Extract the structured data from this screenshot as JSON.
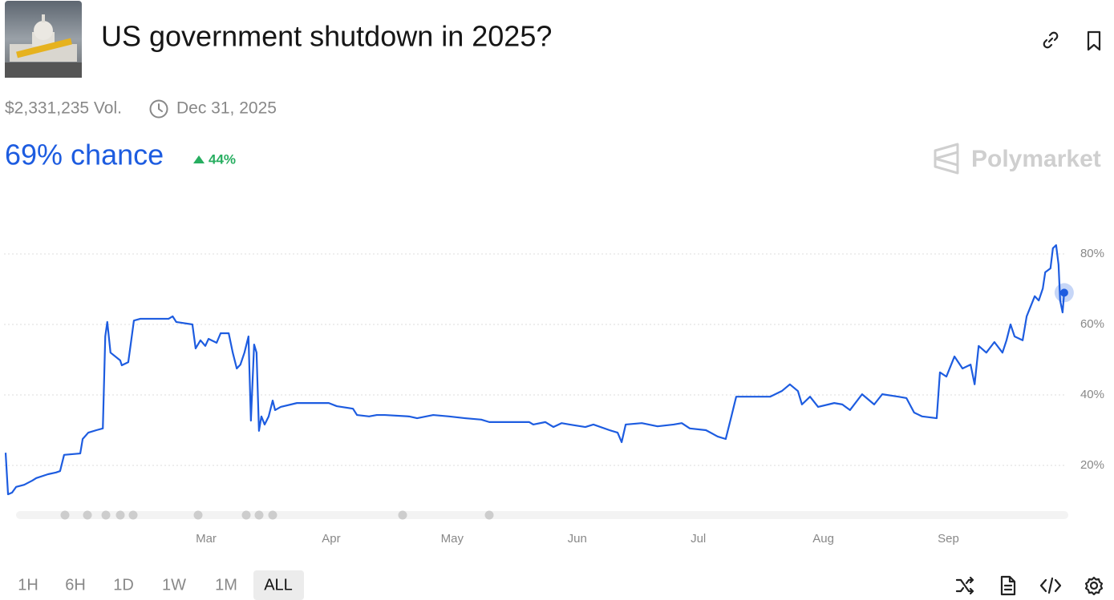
{
  "header": {
    "title": "US government shutdown in 2025?",
    "volume": "$2,331,235 Vol.",
    "end_date": "Dec 31, 2025",
    "chance": "69% chance",
    "change": "44%",
    "brand": "Polymarket"
  },
  "chart_data": {
    "type": "line",
    "color": "#1d5ce0",
    "x": [
      10.3,
      10.9,
      11.9,
      12.9,
      14.9,
      16.9,
      17.9,
      20.8,
      22.8,
      23.8,
      24.8,
      28.8,
      29.4,
      30.8,
      32.8,
      34.4,
      35.0,
      35.5,
      36.3,
      38.7,
      39.1,
      40.7,
      41.3,
      42.1,
      43.7,
      50.7,
      51.7,
      52.6,
      56.6,
      57.4,
      58.6,
      59.8,
      60.6,
      62.6,
      63.6,
      65.6,
      66.6,
      67.6,
      68.5,
      69.5,
      70.5,
      71.1,
      71.9,
      72.5,
      73.1,
      73.7,
      74.5,
      75.5,
      76.5,
      77.1,
      78.5,
      82.5,
      90.4,
      92.4,
      96.4,
      97.4,
      100.4,
      102.3,
      104.3,
      110.3,
      112.3,
      116.3,
      120.2,
      124.2,
      128.2,
      130.2,
      140.1,
      141.1,
      144.1,
      146.1,
      148.1,
      150.1,
      154.0,
      156.0,
      160.0,
      162.0,
      163.0,
      164.0,
      168.0,
      171.9,
      175.9,
      177.9,
      179.9,
      183.9,
      186.8,
      188.8,
      190.2,
      191.4,
      193.8,
      199.8,
      202.7,
      204.7,
      206.7,
      207.7,
      209.7,
      211.7,
      215.7,
      217.7,
      219.6,
      222.6,
      225.6,
      227.6,
      231.6,
      233.6,
      235.5,
      237.5,
      241.1,
      241.9,
      243.5,
      245.5,
      247.5,
      249.5,
      250.5,
      251.5,
      253.4,
      255.4,
      257.4,
      258.4,
      259.4,
      260.4,
      262.4,
      263.4,
      265.4,
      266.4,
      267.4,
      268.0,
      269.3,
      269.9,
      270.7,
      271.3,
      271.7,
      272.3,
      272.7
    ],
    "values": [
      23.6,
      11.8,
      12.3,
      13.9,
      14.5,
      15.7,
      16.4,
      17.5,
      18.0,
      18.4,
      23.0,
      23.4,
      27.5,
      29.3,
      30.0,
      30.5,
      56.6,
      60.7,
      52.0,
      49.8,
      48.4,
      49.3,
      54.3,
      61.1,
      61.6,
      61.6,
      62.3,
      60.7,
      60.0,
      53.2,
      55.5,
      53.9,
      55.9,
      54.8,
      57.5,
      57.5,
      52.0,
      47.5,
      48.6,
      52.0,
      56.6,
      32.7,
      54.3,
      52.0,
      29.8,
      33.9,
      31.6,
      33.9,
      38.4,
      35.7,
      36.6,
      37.7,
      37.7,
      36.8,
      36.1,
      34.3,
      33.9,
      34.3,
      34.3,
      33.9,
      33.4,
      34.3,
      33.9,
      33.4,
      33.0,
      32.3,
      32.3,
      31.6,
      32.3,
      30.9,
      32.0,
      31.6,
      30.9,
      31.6,
      30.0,
      29.3,
      26.6,
      31.6,
      32.0,
      31.1,
      31.6,
      32.0,
      30.5,
      30.0,
      28.2,
      27.5,
      33.9,
      39.5,
      39.5,
      39.5,
      41.1,
      43.0,
      41.1,
      37.3,
      39.5,
      36.6,
      37.7,
      37.3,
      35.7,
      40.2,
      37.3,
      40.2,
      39.5,
      39.1,
      35.0,
      33.9,
      33.4,
      46.4,
      45.2,
      50.9,
      47.5,
      48.6,
      43.0,
      53.9,
      52.0,
      55.0,
      52.0,
      55.5,
      60.0,
      56.6,
      55.5,
      62.3,
      68.0,
      66.8,
      70.2,
      74.8,
      75.9,
      81.6,
      82.5,
      77.0,
      66.8,
      63.4,
      69
    ],
    "xlim": [
      10,
      273
    ],
    "xticks": [
      {
        "value": 60,
        "label": "Mar"
      },
      {
        "value": 91,
        "label": "Apr"
      },
      {
        "value": 121,
        "label": "May"
      },
      {
        "value": 152,
        "label": "Jun"
      },
      {
        "value": 182,
        "label": "Jul"
      },
      {
        "value": 213,
        "label": "Aug"
      },
      {
        "value": 244,
        "label": "Sep"
      }
    ],
    "ylim": [
      6,
      85
    ],
    "yticks": [
      {
        "value": 20,
        "label": "20%"
      },
      {
        "value": 40,
        "label": "40%"
      },
      {
        "value": 60,
        "label": "60%"
      },
      {
        "value": 80,
        "label": "80%"
      }
    ],
    "grid": true
  },
  "controls": {
    "ranges": [
      "1H",
      "6H",
      "1D",
      "1W",
      "1M",
      "ALL"
    ]
  }
}
